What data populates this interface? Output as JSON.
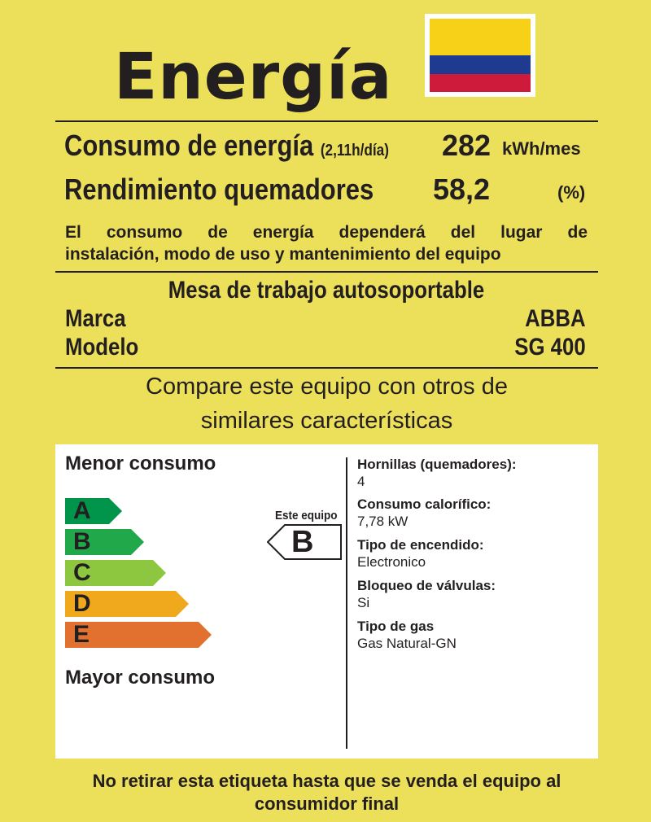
{
  "header": {
    "title": "Energía"
  },
  "flag": {
    "colors": [
      "#F7D118",
      "#1E3B8F",
      "#CE1B3B"
    ]
  },
  "consumption": {
    "label": "Consumo de energía",
    "qualifier": "(2,11h/día)",
    "value": "282",
    "unit": "kWh/mes"
  },
  "efficiency": {
    "label": "Rendimiento quemadores",
    "value": "58,2",
    "unit": "(%)"
  },
  "note": {
    "line1": "El consumo de energía dependerá del lugar de",
    "line2": "instalación, modo de uso y mantenimiento del equipo"
  },
  "product": {
    "type": "Mesa de trabajo autosoportable",
    "brand_label": "Marca",
    "brand_value": "ABBA",
    "model_label": "Modelo",
    "model_value": "SG 400"
  },
  "compare": {
    "line1": "Compare este equipo con otros de",
    "line2": "similares características"
  },
  "scale": {
    "top_label": "Menor consumo",
    "bottom_label": "Mayor consumo",
    "classes": [
      {
        "letter": "A",
        "color": "#00954A"
      },
      {
        "letter": "B",
        "color": "#20A84A"
      },
      {
        "letter": "C",
        "color": "#8DC63F"
      },
      {
        "letter": "D",
        "color": "#F0A81C"
      },
      {
        "letter": "E",
        "color": "#E2702E"
      }
    ],
    "indicator_label": "Este equipo",
    "indicator_letter": "B"
  },
  "specs": [
    {
      "label": "Hornillas (quemadores):",
      "value": "4"
    },
    {
      "label": "Consumo calorífico:",
      "value": "7,78 kW"
    },
    {
      "label": "Tipo de encendido:",
      "value": "Electronico"
    },
    {
      "label": "Bloqueo de válvulas:",
      "value": "Si"
    },
    {
      "label": "Tipo de gas",
      "value": "Gas Natural-GN"
    }
  ],
  "footer": {
    "line1": "No retirar esta etiqueta hasta que se venda el equipo al",
    "line2": "consumidor final"
  }
}
